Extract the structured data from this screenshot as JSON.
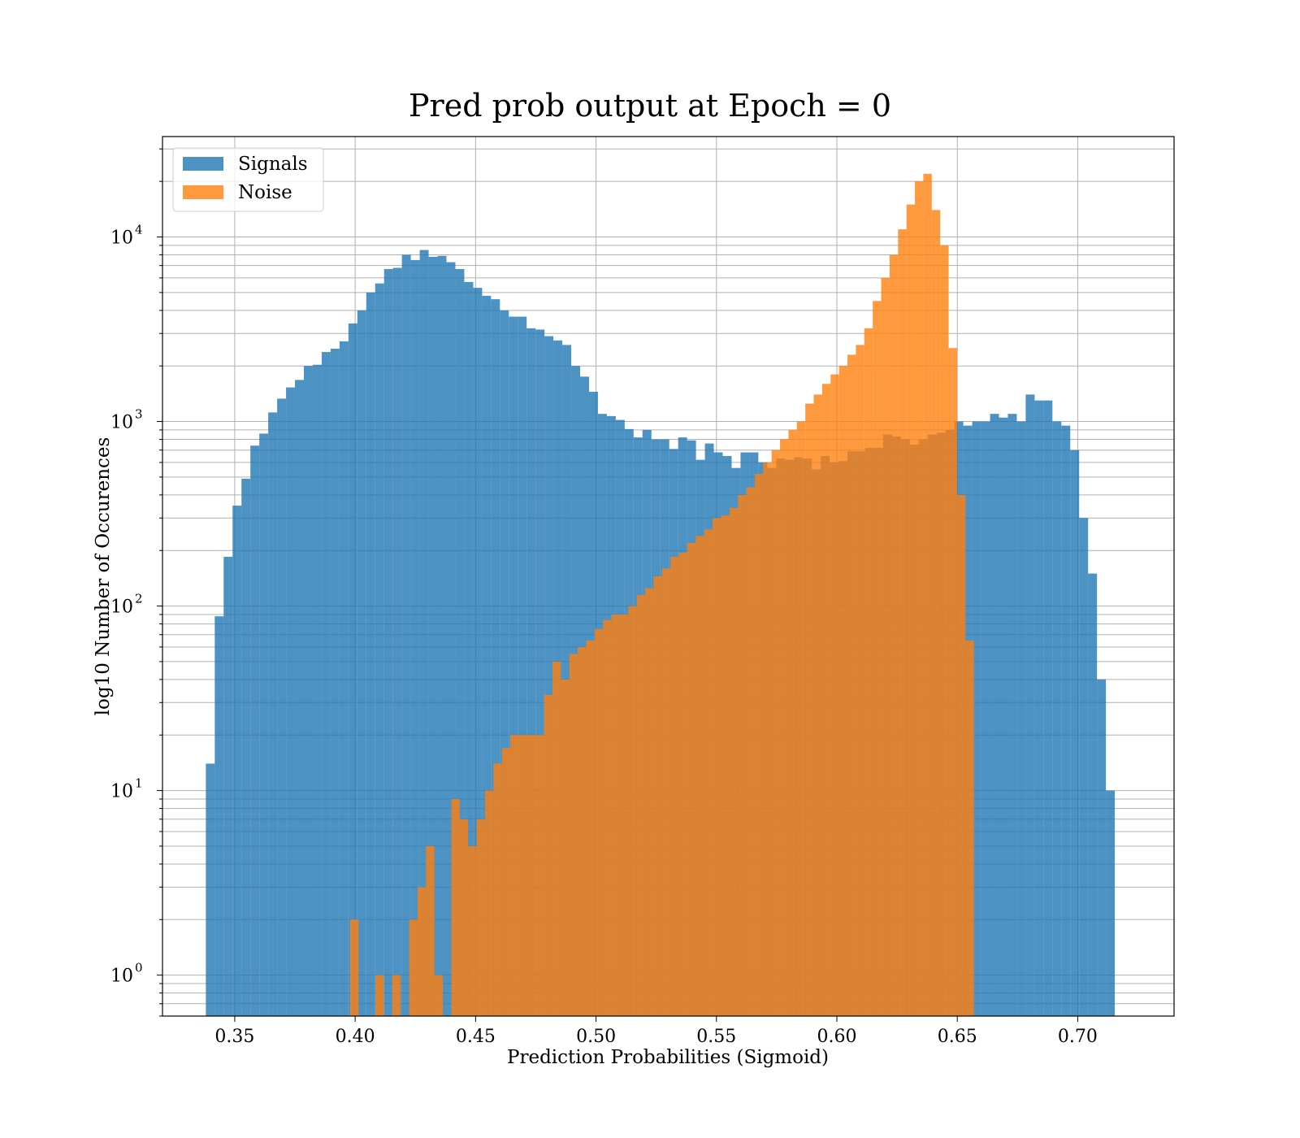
{
  "chart_data": {
    "type": "bar",
    "title": "Pred prob output at Epoch = 0",
    "xlabel": "Prediction Probabilities (Sigmoid)",
    "ylabel": "log10 Number of Occurences",
    "xlim": [
      0.32,
      0.74
    ],
    "ylim": [
      0.6,
      35000
    ],
    "yscale": "log",
    "grid": true,
    "legend_position": "top-left",
    "x_ticks": [
      "0.35",
      "0.40",
      "0.45",
      "0.50",
      "0.55",
      "0.60",
      "0.65",
      "0.70"
    ],
    "y_ticks": [
      {
        "base": "10",
        "exp": "0"
      },
      {
        "base": "10",
        "exp": "1"
      },
      {
        "base": "10",
        "exp": "2"
      },
      {
        "base": "10",
        "exp": "3"
      },
      {
        "base": "10",
        "exp": "4"
      }
    ],
    "series": [
      {
        "name": "Signals",
        "color": "#1f77b4",
        "opacity": 0.8,
        "bin_start": 0.338,
        "bin_width": 0.0037,
        "values": [
          14,
          88,
          185,
          350,
          490,
          740,
          860,
          1120,
          1330,
          1530,
          1680,
          2000,
          2030,
          2380,
          2480,
          2720,
          3400,
          4000,
          5000,
          5600,
          6700,
          6800,
          8000,
          7500,
          8500,
          7800,
          7900,
          7300,
          6700,
          5700,
          5300,
          4800,
          4600,
          4000,
          3700,
          3700,
          3200,
          3150,
          2900,
          2750,
          2600,
          2000,
          1750,
          1450,
          1100,
          1070,
          1020,
          910,
          820,
          900,
          800,
          800,
          710,
          820,
          790,
          620,
          760,
          680,
          650,
          560,
          680,
          680,
          600,
          560,
          630,
          620,
          640,
          630,
          550,
          650,
          600,
          610,
          690,
          690,
          720,
          720,
          850,
          830,
          800,
          750,
          800,
          850,
          870,
          900,
          1000,
          950,
          1000,
          1000,
          1100,
          1050,
          1100,
          1000,
          1400,
          1300,
          1300,
          1000,
          950,
          700,
          300,
          150,
          40,
          10
        ]
      },
      {
        "name": "Noise",
        "color": "#ff7f0e",
        "opacity": 0.8,
        "bin_start": 0.3979,
        "bin_width": 0.0035,
        "values": [
          2,
          0,
          0,
          1,
          0,
          1,
          0,
          2,
          3,
          5,
          1,
          0,
          9,
          7,
          5,
          7,
          10,
          14,
          17,
          20,
          20,
          20,
          20,
          33,
          50,
          40,
          55,
          60,
          65,
          75,
          84,
          90,
          90,
          100,
          115,
          125,
          145,
          160,
          185,
          195,
          220,
          240,
          260,
          300,
          310,
          340,
          400,
          440,
          520,
          600,
          700,
          800,
          900,
          1000,
          1250,
          1400,
          1600,
          1800,
          2000,
          2300,
          2600,
          3200,
          4500,
          6000,
          8000,
          11000,
          15000,
          20000,
          22000,
          14000,
          9000,
          2500,
          400,
          65
        ]
      }
    ]
  }
}
